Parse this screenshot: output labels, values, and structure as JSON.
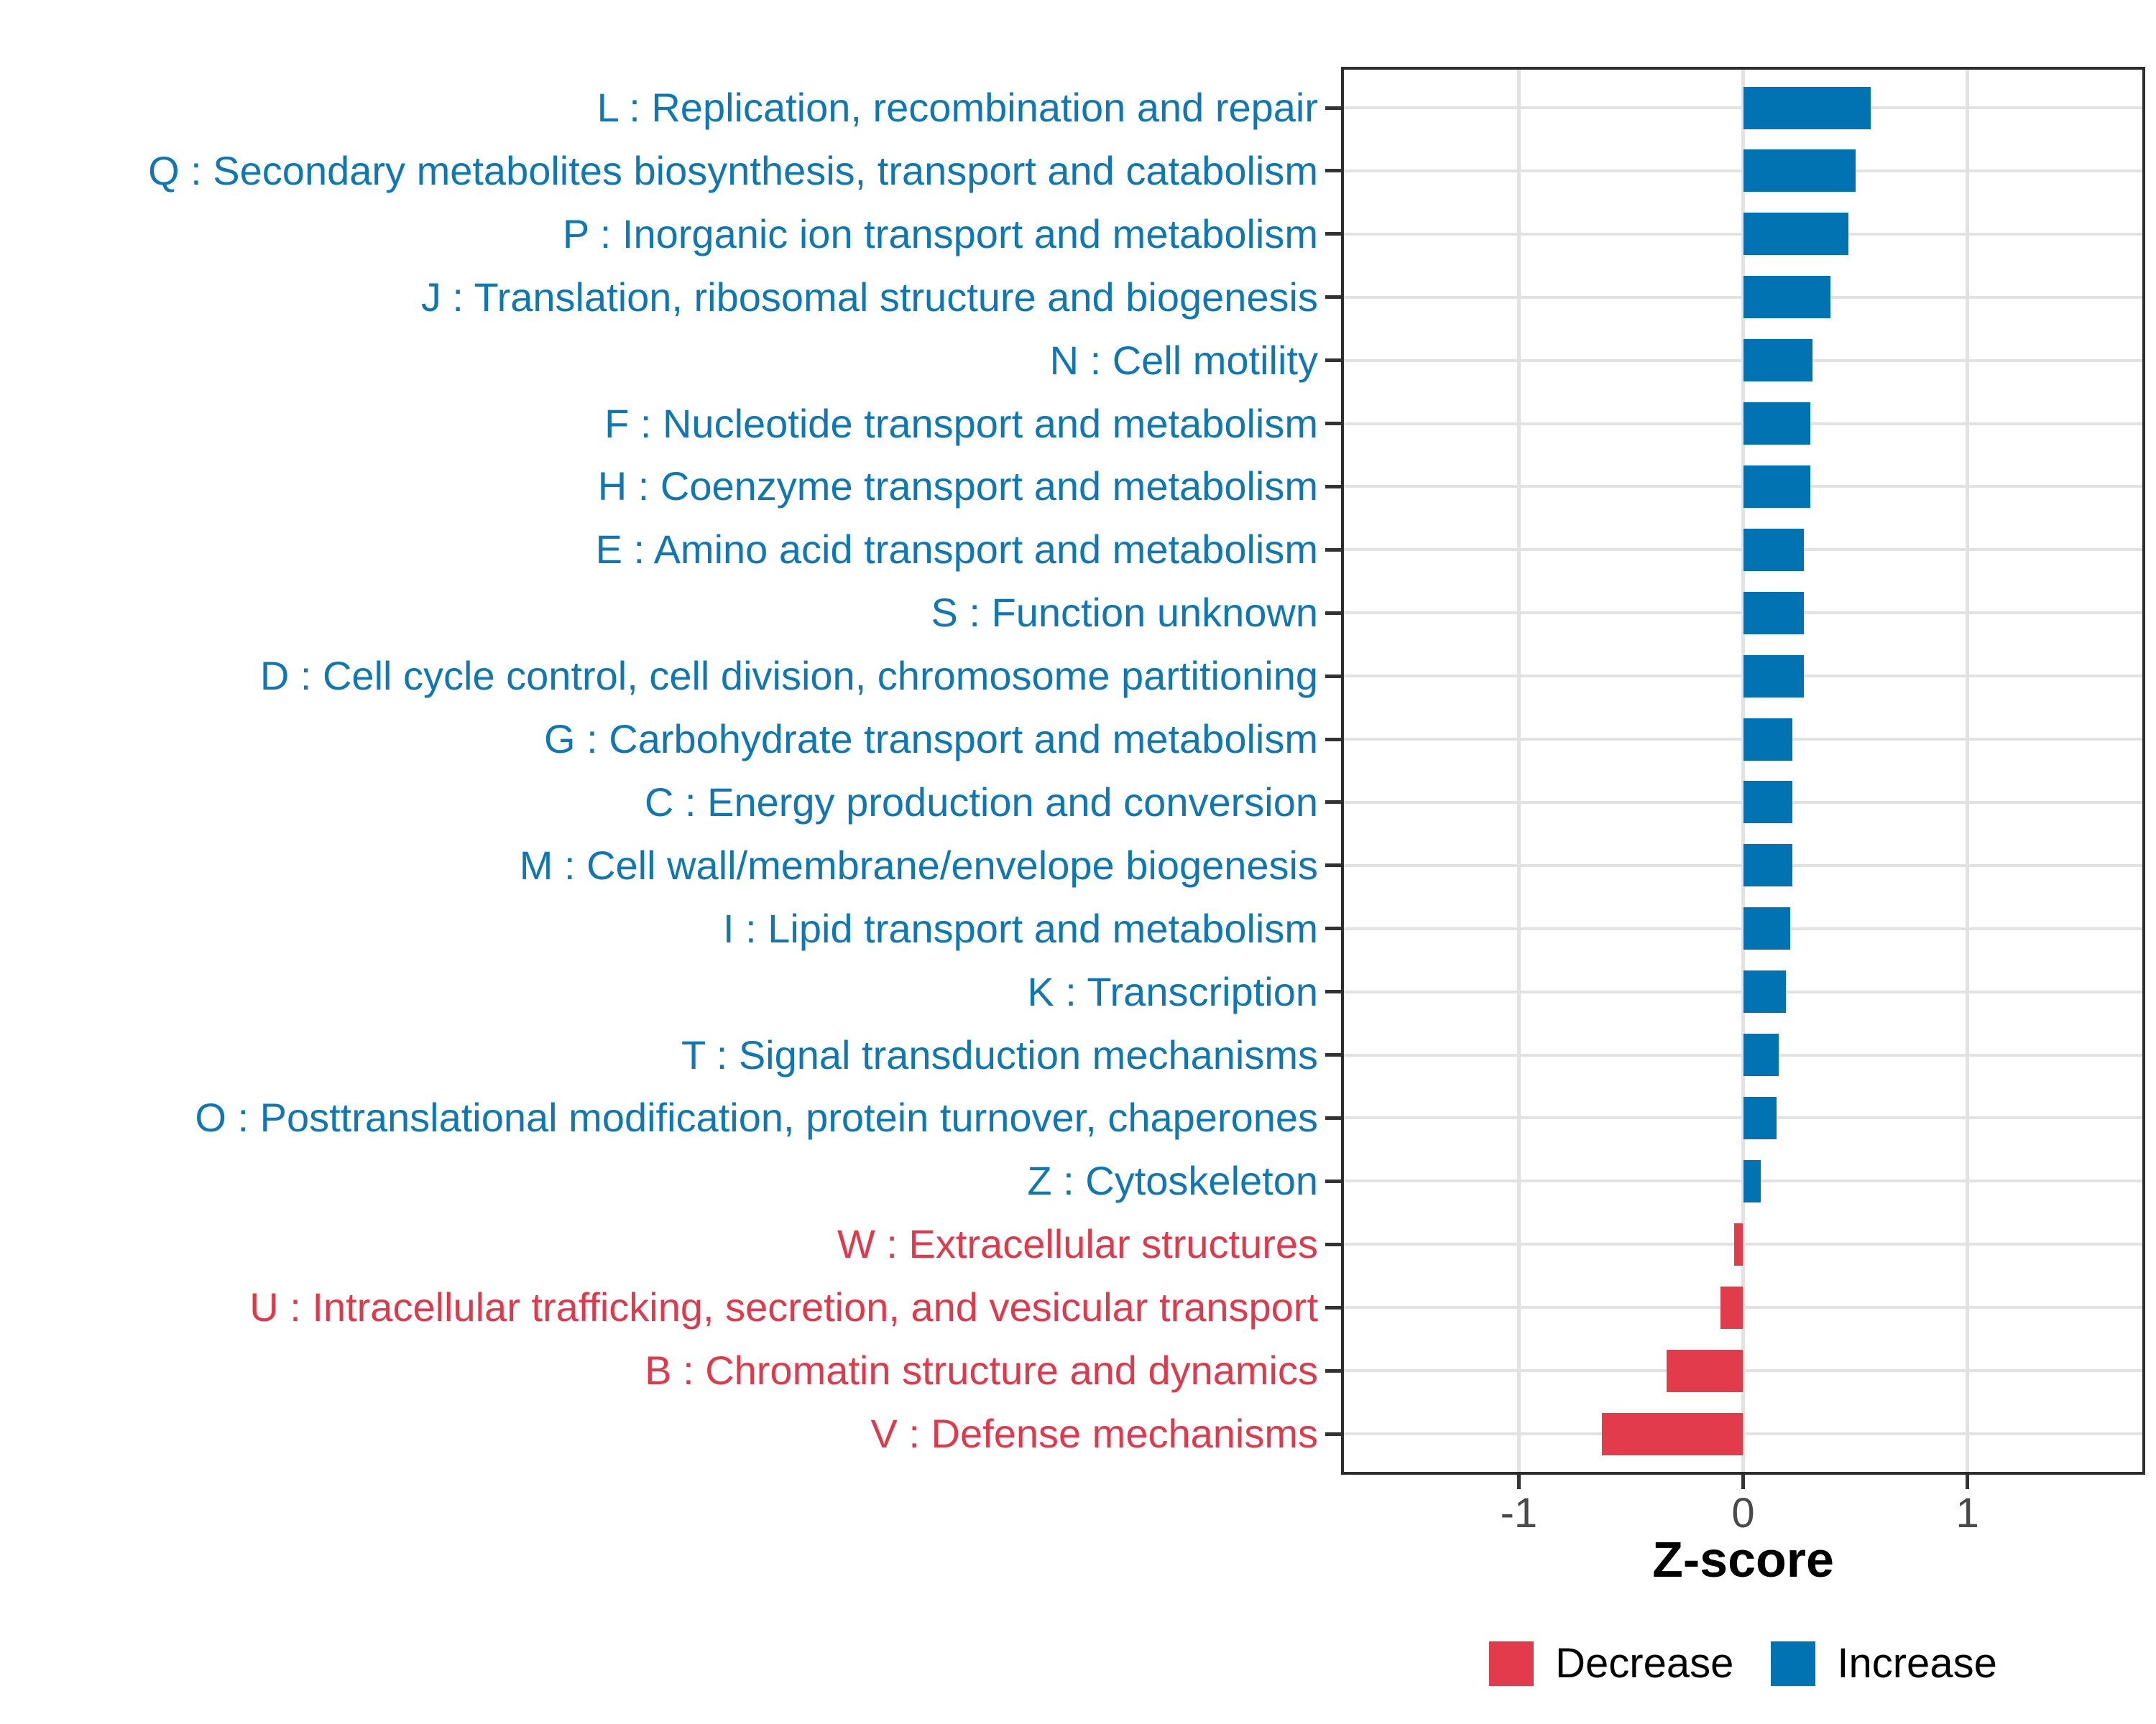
{
  "colors": {
    "background": "#FFFFFF",
    "increase": "#0273B2",
    "decrease": "#E23B4C",
    "label_increase": "#0F78B4",
    "label_decrease": "#E0394B",
    "grid": "#E2E2E2",
    "panel_border": "#2D2D2D",
    "tick_mark": "#333333",
    "tick_label": "#4A4A4A",
    "axis_title": "#000000"
  },
  "chart_data": {
    "type": "bar",
    "orientation": "horizontal",
    "title": "",
    "xlabel": "Z-score",
    "ylabel": "",
    "xlim": [
      -1.78,
      1.78
    ],
    "x_ticks": [
      -1,
      0,
      1
    ],
    "x_tick_labels": [
      "-1",
      "0",
      "1"
    ],
    "grid": "major",
    "legend_position": "bottom",
    "legend": [
      {
        "label": "Decrease",
        "direction": "Decrease"
      },
      {
        "label": "Increase",
        "direction": "Increase"
      }
    ],
    "bars": [
      {
        "code": "L",
        "label": "L : Replication, recombination and repair",
        "value": 0.57,
        "direction": "Increase"
      },
      {
        "code": "Q",
        "label": "Q : Secondary metabolites biosynthesis, transport and catabolism",
        "value": 0.5,
        "direction": "Increase"
      },
      {
        "code": "P",
        "label": "P : Inorganic ion transport and metabolism",
        "value": 0.47,
        "direction": "Increase"
      },
      {
        "code": "J",
        "label": "J : Translation, ribosomal structure and biogenesis",
        "value": 0.39,
        "direction": "Increase"
      },
      {
        "code": "N",
        "label": "N : Cell motility",
        "value": 0.31,
        "direction": "Increase"
      },
      {
        "code": "F",
        "label": "F : Nucleotide transport and metabolism",
        "value": 0.3,
        "direction": "Increase"
      },
      {
        "code": "H",
        "label": "H : Coenzyme transport and metabolism",
        "value": 0.3,
        "direction": "Increase"
      },
      {
        "code": "E",
        "label": "E : Amino acid transport and metabolism",
        "value": 0.27,
        "direction": "Increase"
      },
      {
        "code": "S",
        "label": "S : Function unknown",
        "value": 0.27,
        "direction": "Increase"
      },
      {
        "code": "D",
        "label": "D : Cell cycle control, cell division, chromosome partitioning",
        "value": 0.27,
        "direction": "Increase"
      },
      {
        "code": "G",
        "label": "G : Carbohydrate transport and metabolism",
        "value": 0.22,
        "direction": "Increase"
      },
      {
        "code": "C",
        "label": "C : Energy production and conversion",
        "value": 0.22,
        "direction": "Increase"
      },
      {
        "code": "M",
        "label": "M : Cell wall/membrane/envelope biogenesis",
        "value": 0.22,
        "direction": "Increase"
      },
      {
        "code": "I",
        "label": "I : Lipid transport and metabolism",
        "value": 0.21,
        "direction": "Increase"
      },
      {
        "code": "K",
        "label": "K : Transcription",
        "value": 0.19,
        "direction": "Increase"
      },
      {
        "code": "T",
        "label": "T : Signal transduction mechanisms",
        "value": 0.16,
        "direction": "Increase"
      },
      {
        "code": "O",
        "label": "O : Posttranslational modification, protein turnover, chaperones",
        "value": 0.15,
        "direction": "Increase"
      },
      {
        "code": "Z",
        "label": "Z : Cytoskeleton",
        "value": 0.08,
        "direction": "Increase"
      },
      {
        "code": "W",
        "label": "W : Extracellular structures",
        "value": -0.04,
        "direction": "Decrease"
      },
      {
        "code": "U",
        "label": "U : Intracellular trafficking, secretion, and vesicular transport",
        "value": -0.1,
        "direction": "Decrease"
      },
      {
        "code": "B",
        "label": "B : Chromatin structure and dynamics",
        "value": -0.34,
        "direction": "Decrease"
      },
      {
        "code": "V",
        "label": "V : Defense mechanisms",
        "value": -0.63,
        "direction": "Decrease"
      }
    ]
  }
}
